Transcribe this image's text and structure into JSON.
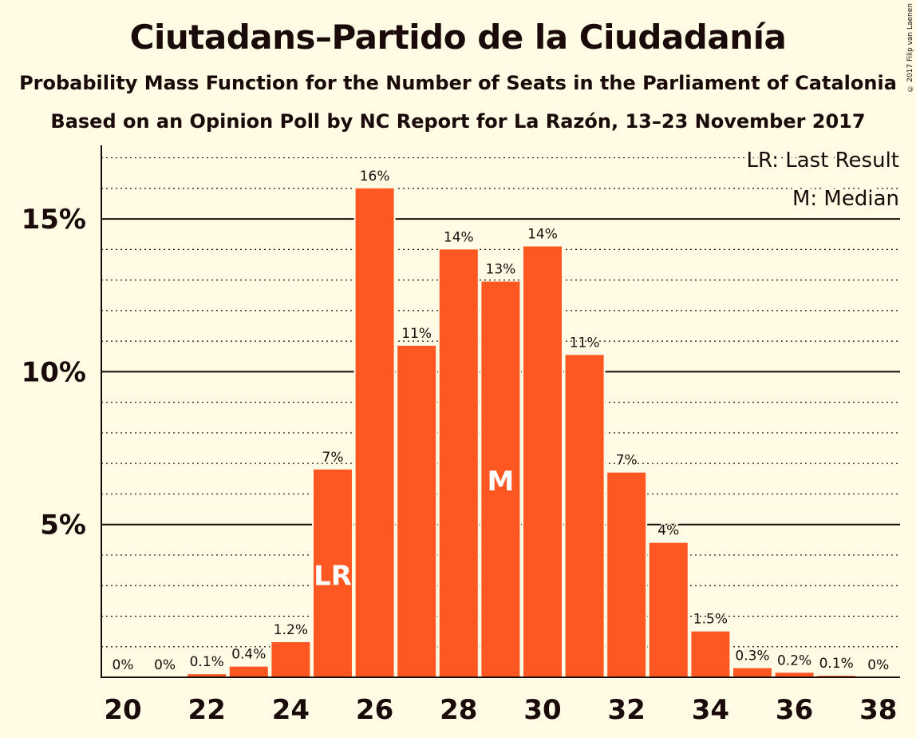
{
  "chart_data": {
    "type": "bar",
    "title": "Ciutadans–Partido de la Ciudadanía",
    "subtitle": "Probability Mass Function for the Number of Seats in the Parliament of Catalonia",
    "subtitle2": "Based on an Opinion Poll by NC Report for La Razón, 13–23 November 2017",
    "copyright": "© 2017 Filip van Laenen",
    "categories": [
      20,
      21,
      22,
      23,
      24,
      25,
      26,
      27,
      28,
      29,
      30,
      31,
      32,
      33,
      34,
      35,
      36,
      37,
      38
    ],
    "values": [
      0,
      0,
      0.1,
      0.35,
      1.15,
      6.8,
      16.0,
      10.85,
      14.0,
      12.95,
      14.1,
      10.55,
      6.7,
      4.4,
      1.5,
      0.3,
      0.15,
      0.05,
      0
    ],
    "value_labels": [
      "0%",
      "0%",
      "0.1%",
      "0.4%",
      "1.2%",
      "7%",
      "16%",
      "11%",
      "14%",
      "13%",
      "14%",
      "11%",
      "7%",
      "4%",
      "1.5%",
      "0.3%",
      "0.2%",
      "0.1%",
      "0%"
    ],
    "x_tick_labels": [
      "20",
      "22",
      "24",
      "26",
      "28",
      "30",
      "32",
      "34",
      "36",
      "38"
    ],
    "y_tick_labels": [
      "5%",
      "10%",
      "15%"
    ],
    "y_ticks": [
      5,
      10,
      15
    ],
    "ylim": [
      0,
      17.4
    ],
    "last_result_seat": 25,
    "median_seat": 29,
    "last_result_marker": "LR",
    "median_marker": "M",
    "legend": [
      "LR: Last Result",
      "M: Median"
    ],
    "legend_position": "top-right",
    "grid": "dotted minor every 1%, solid major every 5%",
    "colors": {
      "bar": "#FF5722",
      "background": "#FFFBE4",
      "text": "#1a0a0a"
    }
  }
}
